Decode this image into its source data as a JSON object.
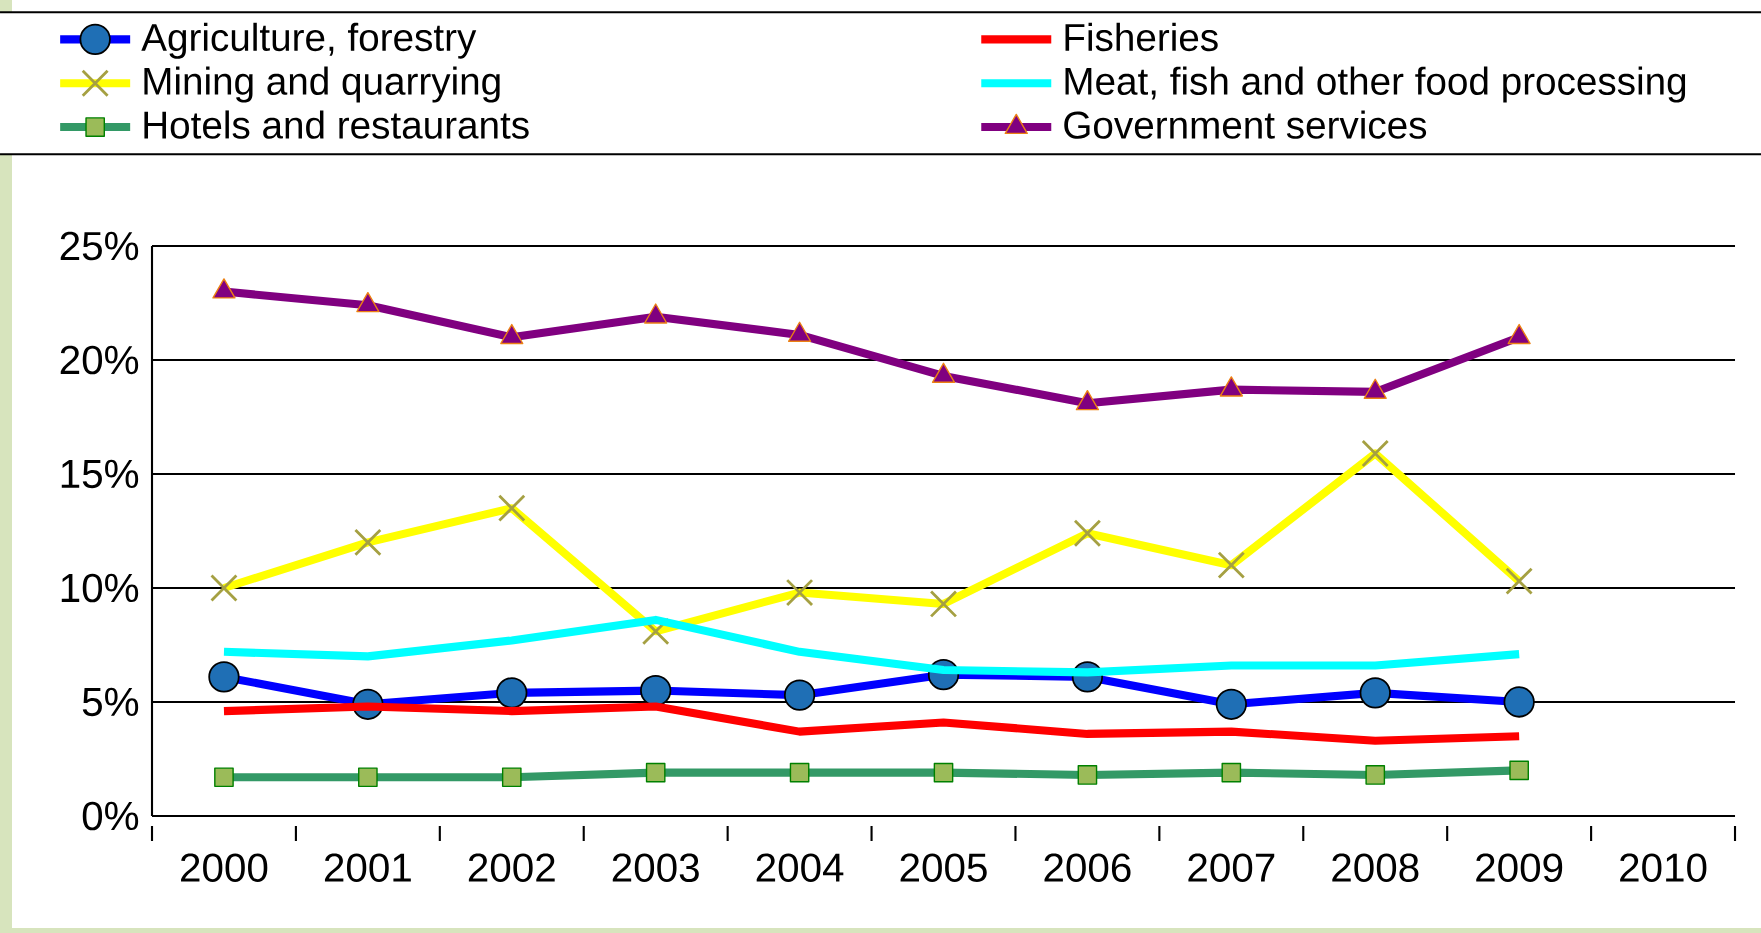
{
  "chart_data": {
    "type": "line",
    "categories": [
      "2000",
      "2001",
      "2002",
      "2003",
      "2004",
      "2005",
      "2006",
      "2007",
      "2008",
      "2009",
      "2010"
    ],
    "series": [
      {
        "name": "Agriculture, forestry",
        "color": "#0000ff",
        "marker": "circle",
        "values": [
          6.1,
          4.9,
          5.4,
          5.5,
          5.3,
          6.2,
          6.1,
          4.9,
          5.4,
          5.0,
          null
        ]
      },
      {
        "name": "Fisheries",
        "color": "#ff0000",
        "marker": "none",
        "values": [
          4.6,
          4.8,
          4.6,
          4.8,
          3.7,
          4.1,
          3.6,
          3.7,
          3.3,
          3.5,
          null
        ]
      },
      {
        "name": "Mining and quarrying",
        "color": "#ffff00",
        "marker": "cross",
        "values": [
          10.0,
          12.0,
          13.5,
          8.1,
          9.8,
          9.3,
          12.4,
          11.0,
          15.9,
          10.3,
          null
        ]
      },
      {
        "name": "Meat, fish and other food processing",
        "color": "#00ffff",
        "marker": "none",
        "values": [
          7.2,
          7.0,
          7.7,
          8.6,
          7.2,
          6.4,
          6.3,
          6.6,
          6.6,
          7.1,
          null
        ]
      },
      {
        "name": "Hotels and restaurants",
        "color": "#339966",
        "marker": "square",
        "values": [
          1.7,
          1.7,
          1.7,
          1.9,
          1.9,
          1.9,
          1.8,
          1.9,
          1.8,
          2.0,
          null
        ]
      },
      {
        "name": "Government services",
        "color": "#800080",
        "marker": "triangle",
        "values": [
          23.0,
          22.4,
          21.0,
          21.9,
          21.1,
          19.3,
          18.1,
          18.7,
          18.6,
          21.0,
          null
        ]
      }
    ],
    "ylim": [
      0,
      25
    ],
    "yticks": [
      {
        "value": 0,
        "label": "0%"
      },
      {
        "value": 5,
        "label": "5%"
      },
      {
        "value": 10,
        "label": "10%"
      },
      {
        "value": 15,
        "label": "15%"
      },
      {
        "value": 20,
        "label": "20%"
      },
      {
        "value": 25,
        "label": "25%"
      }
    ],
    "grid": "y",
    "legend": "top",
    "line_style": "solid"
  }
}
